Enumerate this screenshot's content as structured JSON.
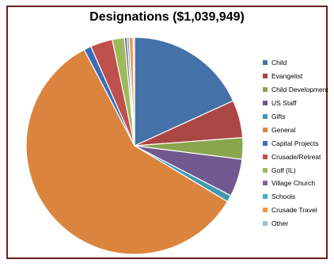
{
  "chart_data": {
    "type": "pie",
    "title": "Designations ($1,039,949)",
    "legend_position": "right",
    "start_angle_deg": 0,
    "direction": "clockwise",
    "slices": [
      {
        "label": "Child",
        "value": 18.2,
        "color": "#4472a8"
      },
      {
        "label": "Evangelist",
        "value": 5.6,
        "color": "#aa4643"
      },
      {
        "label": "Child Development",
        "value": 3.2,
        "color": "#89a54e"
      },
      {
        "label": "US Staff",
        "value": 5.6,
        "color": "#71588f"
      },
      {
        "label": "Gifts",
        "value": 1.0,
        "color": "#4198af"
      },
      {
        "label": "General",
        "value": 58.7,
        "color": "#db843d"
      },
      {
        "label": "Capital Projects",
        "value": 1.1,
        "color": "#3a6fb8"
      },
      {
        "label": "Crusade/Retreat",
        "value": 3.3,
        "color": "#c0504d"
      },
      {
        "label": "Golf (IL)",
        "value": 1.8,
        "color": "#9bbb59"
      },
      {
        "label": "Village Church",
        "value": 0.4,
        "color": "#8064a2"
      },
      {
        "label": "Schools",
        "value": 0.3,
        "color": "#4bacc6"
      },
      {
        "label": "Crusade Travel",
        "value": 0.6,
        "color": "#f79646"
      },
      {
        "label": "Other",
        "value": 0.2,
        "color": "#a5b8d8"
      }
    ]
  }
}
